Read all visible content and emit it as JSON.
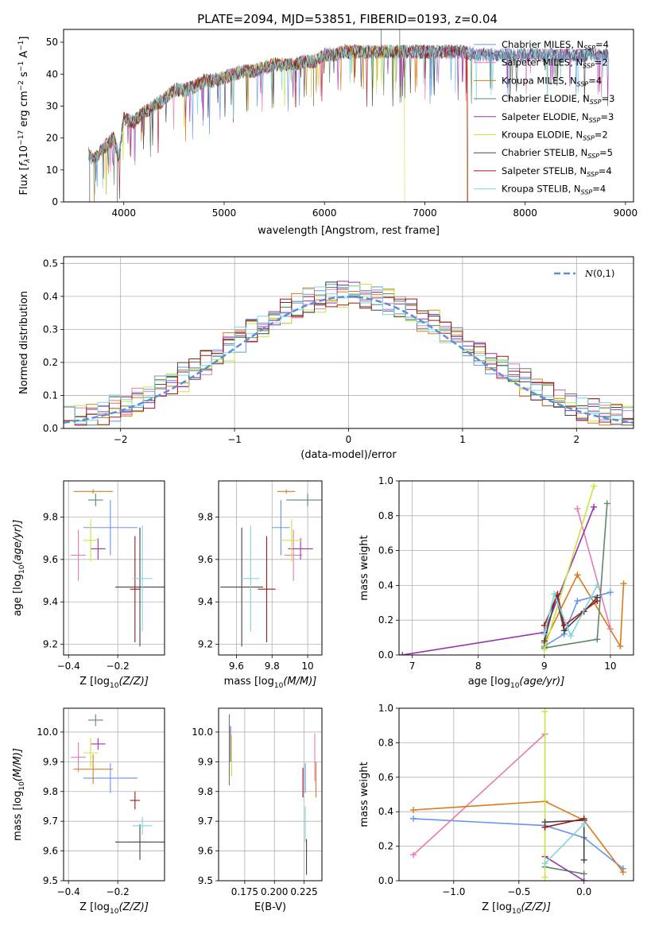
{
  "figure": {
    "title": "PLATE=2094, MJD=53851, FIBERID=0193, z=0.04"
  },
  "chart_data": [
    {
      "type": "line",
      "id": "spectrum",
      "title": "PLATE=2094, MJD=53851, FIBERID=0193, z=0.04",
      "xlabel": "wavelength [Angstrom, rest frame]",
      "ylabel": "Flux [f_λ 10^-17 erg cm^-2 s^-1 A^-1]",
      "xlim": [
        3400,
        9080
      ],
      "ylim": [
        0,
        54
      ],
      "xticks": [
        4000,
        5000,
        6000,
        7000,
        8000,
        9000
      ],
      "yticks": [
        0,
        10,
        20,
        30,
        40,
        50
      ],
      "grid": false,
      "legend_position": "upper right",
      "data_envelope": {
        "x": [
          3650,
          3700,
          3800,
          3900,
          3950,
          4000,
          4100,
          4200,
          4300,
          4400,
          4500,
          4600,
          4700,
          4800,
          4900,
          5000,
          5100,
          5200,
          5300,
          5400,
          5500,
          5600,
          5700,
          5800,
          5900,
          6000,
          6100,
          6200,
          6300,
          6400,
          6500,
          6600,
          6700,
          6800,
          6900,
          7000,
          7100,
          7200,
          7300,
          7400,
          7500,
          7600,
          7700,
          7800,
          7900,
          8000,
          8100,
          8200,
          8300,
          8400,
          8500,
          8600,
          8700,
          8800
        ],
        "y": [
          15,
          13,
          17,
          20,
          14,
          26,
          25,
          28,
          30,
          32,
          35,
          35,
          36,
          38,
          38,
          39,
          40,
          41,
          41,
          42,
          43,
          43,
          43,
          44,
          44,
          46,
          46,
          47,
          47,
          47,
          47,
          47,
          47,
          47,
          47,
          47,
          47,
          47,
          47,
          47,
          46,
          46,
          46,
          46,
          46,
          46,
          46,
          46,
          46,
          46,
          46,
          46,
          46,
          46
        ]
      },
      "series": [
        {
          "name": "Chabrier MILES, N_SSP=4",
          "label_main": "Chabrier MILES, N",
          "label_sub": "SSP",
          "label_tail": "=4",
          "color": "#6495ed"
        },
        {
          "name": "Salpeter MILES, N_SSP=2",
          "label_main": "Salpeter MILES, N",
          "label_sub": "SSP",
          "label_tail": "=2",
          "color": "#e67ab4"
        },
        {
          "name": "Kroupa MILES, N_SSP=4",
          "label_main": "Kroupa MILES, N",
          "label_sub": "SSP",
          "label_tail": "=4",
          "color": "#d97b1c"
        },
        {
          "name": "Chabrier ELODIE, N_SSP=3",
          "label_main": "Chabrier ELODIE, N",
          "label_sub": "SSP",
          "label_tail": "=3",
          "color": "#5b8a65"
        },
        {
          "name": "Salpeter ELODIE, N_SSP=3",
          "label_main": "Salpeter ELODIE, N",
          "label_sub": "SSP",
          "label_tail": "=3",
          "color": "#9a32b0"
        },
        {
          "name": "Kroupa ELODIE, N_SSP=2",
          "label_main": "Kroupa ELODIE, N",
          "label_sub": "SSP",
          "label_tail": "=2",
          "color": "#c8e63c"
        },
        {
          "name": "Chabrier STELIB, N_SSP=5",
          "label_main": "Chabrier STELIB, N",
          "label_sub": "SSP",
          "label_tail": "=5",
          "color": "#444444"
        },
        {
          "name": "Salpeter STELIB, N_SSP=4",
          "label_main": "Salpeter STELIB, N",
          "label_sub": "SSP",
          "label_tail": "=4",
          "color": "#a01818"
        },
        {
          "name": "Kroupa STELIB, N_SSP=4",
          "label_main": "Kroupa STELIB, N",
          "label_sub": "SSP",
          "label_tail": "=4",
          "color": "#7fd6dc"
        }
      ],
      "cutoffs": [
        {
          "series": "Kroupa ELODIE, N_SSP=2",
          "wavelength": 6800
        },
        {
          "series": "Kroupa MILES, N_SSP=4",
          "wavelength": 7420
        },
        {
          "series": "Salpeter STELIB, N_SSP=4",
          "wavelength": 7430
        }
      ]
    },
    {
      "type": "step",
      "id": "residuals",
      "xlabel": "(data-model)/error",
      "ylabel": "Normed distribution",
      "xlim": [
        -2.5,
        2.5
      ],
      "ylim": [
        0,
        0.52
      ],
      "xticks": [
        -2,
        -1,
        0,
        1,
        2
      ],
      "xtick_labels": [
        "−2",
        "−1",
        "0",
        "1",
        "2"
      ],
      "yticks": [
        0.0,
        0.1,
        0.2,
        0.3,
        0.4,
        0.5
      ],
      "grid": true,
      "bin_width": 0.1,
      "reference_curve": {
        "name": "N(0,1)",
        "style": "dashed",
        "color": "#5b8fd6"
      },
      "series": [
        {
          "name": "Chabrier MILES",
          "color": "#6495ed",
          "peak_offset": 0.0
        },
        {
          "name": "Salpeter MILES",
          "color": "#e67ab4",
          "peak_offset": 0.03
        },
        {
          "name": "Kroupa MILES",
          "color": "#d97b1c",
          "peak_offset": -0.02
        },
        {
          "name": "Chabrier ELODIE",
          "color": "#5b8a65",
          "peak_offset": 0.02
        },
        {
          "name": "Salpeter ELODIE",
          "color": "#9a32b0",
          "peak_offset": 0.0
        },
        {
          "name": "Kroupa ELODIE",
          "color": "#c8e63c",
          "peak_offset": 0.04
        },
        {
          "name": "Chabrier STELIB",
          "color": "#444444",
          "peak_offset": -0.01
        },
        {
          "name": "Salpeter STELIB",
          "color": "#a01818",
          "peak_offset": 0.01
        },
        {
          "name": "Kroupa STELIB",
          "color": "#7fd6dc",
          "peak_offset": -0.03
        }
      ]
    },
    {
      "type": "scatter",
      "id": "age-vs-Z",
      "xlabel": "Z [log10(Z/Z⊙)]",
      "ylabel": "age [log10(age/yr)]",
      "xlim": [
        -0.42,
        -0.01
      ],
      "ylim": [
        9.15,
        9.97
      ],
      "xticks": [
        -0.4,
        -0.2
      ],
      "xtick_labels": [
        "−0.4",
        "−0.2"
      ],
      "yticks": [
        9.2,
        9.4,
        9.6,
        9.8
      ],
      "grid": true,
      "points": [
        {
          "series": "Chabrier MILES",
          "x": -0.23,
          "y": 9.75,
          "xerr": 0.11,
          "yerr": 0.13,
          "color": "#6495ed"
        },
        {
          "series": "Salpeter MILES",
          "x": -0.36,
          "y": 9.62,
          "xerr": 0.03,
          "yerr": 0.12,
          "color": "#e67ab4"
        },
        {
          "series": "Kroupa MILES",
          "x": -0.3,
          "y": 9.92,
          "xerr": 0.08,
          "yerr": 0.01,
          "color": "#d97b1c"
        },
        {
          "series": "Chabrier ELODIE",
          "x": -0.29,
          "y": 9.88,
          "xerr": 0.03,
          "yerr": 0.03,
          "color": "#5b8a65"
        },
        {
          "series": "Salpeter ELODIE",
          "x": -0.28,
          "y": 9.65,
          "xerr": 0.03,
          "yerr": 0.05,
          "color": "#9a32b0"
        },
        {
          "series": "Kroupa ELODIE",
          "x": -0.31,
          "y": 9.69,
          "xerr": 0.03,
          "yerr": 0.1,
          "color": "#c8e63c"
        },
        {
          "series": "Chabrier STELIB",
          "x": -0.11,
          "y": 9.47,
          "xerr": 0.1,
          "yerr": 0.28,
          "color": "#444444"
        },
        {
          "series": "Salpeter STELIB",
          "x": -0.13,
          "y": 9.46,
          "xerr": 0.02,
          "yerr": 0.25,
          "color": "#a01818"
        },
        {
          "series": "Kroupa STELIB",
          "x": -0.1,
          "y": 9.51,
          "xerr": 0.04,
          "yerr": 0.25,
          "color": "#7fd6dc"
        }
      ]
    },
    {
      "type": "scatter",
      "id": "age-vs-mass",
      "xlabel": "mass [log10(M/M⊙)]",
      "ylabel": "",
      "xlim": [
        9.5,
        10.08
      ],
      "ylim": [
        9.15,
        9.97
      ],
      "xticks": [
        9.6,
        9.8,
        10.0
      ],
      "yticks": [
        9.2,
        9.4,
        9.6,
        9.8
      ],
      "grid": true,
      "points": [
        {
          "series": "Chabrier MILES",
          "x": 9.85,
          "y": 9.75,
          "xerr": 0.05,
          "yerr": 0.13,
          "color": "#6495ed"
        },
        {
          "series": "Salpeter MILES",
          "x": 9.92,
          "y": 9.62,
          "xerr": 0.05,
          "yerr": 0.12,
          "color": "#e67ab4"
        },
        {
          "series": "Kroupa MILES",
          "x": 9.88,
          "y": 9.92,
          "xerr": 0.05,
          "yerr": 0.01,
          "color": "#d97b1c"
        },
        {
          "series": "Chabrier ELODIE",
          "x": 10.0,
          "y": 9.88,
          "xerr": 0.12,
          "yerr": 0.03,
          "color": "#5b8a65"
        },
        {
          "series": "Salpeter ELODIE",
          "x": 9.96,
          "y": 9.65,
          "xerr": 0.07,
          "yerr": 0.05,
          "color": "#9a32b0"
        },
        {
          "series": "Kroupa ELODIE",
          "x": 9.91,
          "y": 9.69,
          "xerr": 0.06,
          "yerr": 0.1,
          "color": "#c8e63c"
        },
        {
          "series": "Chabrier STELIB",
          "x": 9.63,
          "y": 9.47,
          "xerr": 0.12,
          "yerr": 0.28,
          "color": "#444444"
        },
        {
          "series": "Salpeter STELIB",
          "x": 9.77,
          "y": 9.46,
          "xerr": 0.05,
          "yerr": 0.25,
          "color": "#a01818"
        },
        {
          "series": "Kroupa STELIB",
          "x": 9.68,
          "y": 9.51,
          "xerr": 0.05,
          "yerr": 0.25,
          "color": "#7fd6dc"
        }
      ]
    },
    {
      "type": "line",
      "id": "weight-vs-age",
      "xlabel": "age [log10(age/yr)]",
      "ylabel": "mass weight",
      "xlim": [
        6.8,
        10.35
      ],
      "ylim": [
        0,
        1.0
      ],
      "xticks": [
        7,
        8,
        9,
        10
      ],
      "yticks": [
        0.0,
        0.2,
        0.4,
        0.6,
        0.8,
        1.0
      ],
      "grid": true,
      "series": [
        {
          "name": "Chabrier MILES",
          "color": "#6495ed",
          "x": [
            9.0,
            9.3,
            9.5,
            10.0
          ],
          "y": [
            0.05,
            0.12,
            0.31,
            0.36
          ]
        },
        {
          "name": "Salpeter MILES",
          "color": "#e67ab4",
          "x": [
            9.5,
            10.0
          ],
          "y": [
            0.84,
            0.15
          ]
        },
        {
          "name": "Kroupa MILES",
          "color": "#d97b1c",
          "x": [
            9.0,
            9.5,
            10.15,
            10.2
          ],
          "y": [
            0.07,
            0.46,
            0.05,
            0.41
          ]
        },
        {
          "name": "Chabrier ELODIE",
          "color": "#5b8a65",
          "x": [
            9.0,
            9.8,
            9.95
          ],
          "y": [
            0.04,
            0.09,
            0.87
          ]
        },
        {
          "name": "Salpeter ELODIE",
          "color": "#9a32b0",
          "x": [
            6.85,
            9.0,
            9.75
          ],
          "y": [
            0.0,
            0.13,
            0.85
          ]
        },
        {
          "name": "Kroupa ELODIE",
          "color": "#c8e63c",
          "x": [
            9.0,
            9.75
          ],
          "y": [
            0.03,
            0.97
          ]
        },
        {
          "name": "Chabrier STELIB",
          "color": "#444444",
          "x": [
            9.0,
            9.18,
            9.3,
            9.6,
            9.8
          ],
          "y": [
            0.08,
            0.34,
            0.14,
            0.25,
            0.33
          ]
        },
        {
          "name": "Salpeter STELIB",
          "color": "#a01818",
          "x": [
            9.0,
            9.2,
            9.3,
            9.8
          ],
          "y": [
            0.17,
            0.35,
            0.17,
            0.31
          ]
        },
        {
          "name": "Kroupa STELIB",
          "color": "#7fd6dc",
          "x": [
            9.0,
            9.15,
            9.4,
            9.8
          ],
          "y": [
            0.12,
            0.35,
            0.11,
            0.4
          ]
        }
      ]
    },
    {
      "type": "scatter",
      "id": "mass-vs-Z",
      "xlabel": "Z [log10(Z/Z⊙)]",
      "ylabel": "mass [log10(M/M⊙)]",
      "xlim": [
        -0.42,
        -0.01
      ],
      "ylim": [
        9.5,
        10.08
      ],
      "xticks": [
        -0.4,
        -0.2
      ],
      "xtick_labels": [
        "−0.4",
        "−0.2"
      ],
      "yticks": [
        9.5,
        9.6,
        9.7,
        9.8,
        9.9,
        10.0
      ],
      "grid": true,
      "points": [
        {
          "series": "Chabrier MILES",
          "x": -0.23,
          "y": 9.845,
          "xerr": 0.11,
          "yerr": 0.05,
          "color": "#6495ed"
        },
        {
          "series": "Salpeter MILES",
          "x": -0.36,
          "y": 9.915,
          "xerr": 0.03,
          "yerr": 0.05,
          "color": "#e67ab4"
        },
        {
          "series": "Kroupa MILES",
          "x": -0.3,
          "y": 9.875,
          "xerr": 0.08,
          "yerr": 0.05,
          "color": "#d97b1c"
        },
        {
          "series": "Chabrier ELODIE",
          "x": -0.29,
          "y": 10.04,
          "xerr": 0.03,
          "yerr": 0.02,
          "color": "#5b8a65"
        },
        {
          "series": "Salpeter ELODIE",
          "x": -0.28,
          "y": 9.96,
          "xerr": 0.03,
          "yerr": 0.02,
          "color": "#9a32b0"
        },
        {
          "series": "Kroupa ELODIE",
          "x": -0.31,
          "y": 9.93,
          "xerr": 0.03,
          "yerr": 0.05,
          "color": "#c8e63c"
        },
        {
          "series": "Chabrier STELIB",
          "x": -0.11,
          "y": 9.63,
          "xerr": 0.1,
          "yerr": 0.06,
          "color": "#444444"
        },
        {
          "series": "Salpeter STELIB",
          "x": -0.13,
          "y": 9.77,
          "xerr": 0.02,
          "yerr": 0.03,
          "color": "#a01818"
        },
        {
          "series": "Kroupa STELIB",
          "x": -0.1,
          "y": 9.685,
          "xerr": 0.04,
          "yerr": 0.03,
          "color": "#7fd6dc"
        }
      ]
    },
    {
      "type": "scatter",
      "id": "mass-vs-EBV",
      "xlabel": "E(B-V)",
      "ylabel": "",
      "xlim": [
        0.153,
        0.24
      ],
      "ylim": [
        9.5,
        10.08
      ],
      "xticks": [
        0.175,
        0.2,
        0.225
      ],
      "xtick_labels": [
        "0.175",
        "0.200",
        "0.225"
      ],
      "yticks": [
        9.5,
        9.6,
        9.7,
        9.8,
        9.9,
        10.0
      ],
      "grid": true,
      "points": [
        {
          "series": "Chabrier MILES",
          "x": 0.226,
          "y": 9.845,
          "yerr": 0.05,
          "color": "#6495ed"
        },
        {
          "series": "Salpeter MILES",
          "x": 0.234,
          "y": 9.915,
          "yerr": 0.08,
          "color": "#e67ab4"
        },
        {
          "series": "Kroupa MILES",
          "x": 0.235,
          "y": 9.84,
          "yerr": 0.06,
          "color": "#d97b1c"
        },
        {
          "series": "Chabrier ELODIE",
          "x": 0.162,
          "y": 9.94,
          "yerr": 0.12,
          "color": "#5b8a65"
        },
        {
          "series": "Salpeter ELODIE",
          "x": 0.163,
          "y": 9.96,
          "yerr": 0.06,
          "color": "#9a32b0"
        },
        {
          "series": "Kroupa ELODIE",
          "x": 0.164,
          "y": 9.92,
          "yerr": 0.07,
          "color": "#c8e63c"
        },
        {
          "series": "Chabrier STELIB",
          "x": 0.227,
          "y": 9.58,
          "yerr": 0.06,
          "color": "#444444"
        },
        {
          "series": "Salpeter STELIB",
          "x": 0.224,
          "y": 9.83,
          "yerr": 0.05,
          "color": "#a01818"
        },
        {
          "series": "Kroupa STELIB",
          "x": 0.226,
          "y": 9.69,
          "yerr": 0.06,
          "color": "#7fd6dc"
        }
      ]
    },
    {
      "type": "line",
      "id": "weight-vs-Z",
      "xlabel": "Z [log10(Z/Z⊙)]",
      "ylabel": "mass weight",
      "xlim": [
        -1.42,
        0.38
      ],
      "ylim": [
        0,
        1.0
      ],
      "xticks": [
        -1.0,
        -0.5,
        0.0
      ],
      "xtick_labels": [
        "−1.0",
        "−0.5",
        "0.0"
      ],
      "yticks": [
        0.0,
        0.2,
        0.4,
        0.6,
        0.8,
        1.0
      ],
      "grid": true,
      "series": [
        {
          "name": "Chabrier MILES",
          "color": "#6495ed",
          "x": [
            -1.31,
            -0.3,
            0.0,
            0.3
          ],
          "y": [
            0.36,
            0.32,
            0.25,
            0.07
          ]
        },
        {
          "name": "Salpeter MILES",
          "color": "#e67ab4",
          "x": [
            -1.31,
            -0.3
          ],
          "y": [
            0.15,
            0.85
          ]
        },
        {
          "name": "Kroupa MILES",
          "color": "#d97b1c",
          "x": [
            -1.31,
            -0.3,
            0.0,
            0.3
          ],
          "y": [
            0.41,
            0.46,
            0.35,
            0.05
          ]
        },
        {
          "name": "Chabrier ELODIE",
          "color": "#5b8a65",
          "x": [
            -0.3,
            0.0
          ],
          "y": [
            0.08,
            0.04
          ]
        },
        {
          "name": "Salpeter ELODIE",
          "color": "#9a32b0",
          "x": [
            -0.3,
            0.0
          ],
          "y": [
            0.14,
            0.0
          ]
        },
        {
          "name": "Kroupa ELODIE",
          "color": "#c8e63c",
          "x": [
            -0.3,
            -0.3
          ],
          "y": [
            0.02,
            0.98
          ]
        },
        {
          "name": "Chabrier STELIB",
          "color": "#444444",
          "x": [
            -0.3,
            0.0,
            0.0
          ],
          "y": [
            0.34,
            0.35,
            0.12
          ]
        },
        {
          "name": "Salpeter STELIB",
          "color": "#a01818",
          "x": [
            -0.3,
            0.0
          ],
          "y": [
            0.31,
            0.36
          ]
        },
        {
          "name": "Kroupa STELIB",
          "color": "#7fd6dc",
          "x": [
            -0.3,
            0.0
          ],
          "y": [
            0.1,
            0.33
          ]
        }
      ]
    }
  ]
}
